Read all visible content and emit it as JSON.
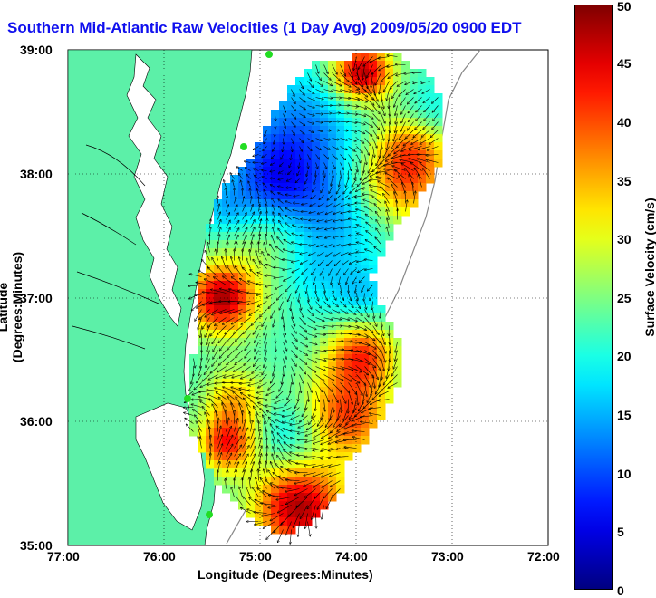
{
  "title": "Southern Mid-Atlantic Raw Velocities (1 Day Avg) 2009/05/20 0900 EDT",
  "xlabel": "Longitude (Degrees:Minutes)",
  "ylabel": "Latitude (Degrees:Minutes)",
  "x_ticks": [
    "77:00",
    "76:00",
    "75:00",
    "74:00",
    "73:00",
    "72:00"
  ],
  "y_ticks": [
    "39:00",
    "38:00",
    "37:00",
    "36:00",
    "35:00"
  ],
  "colorbar": {
    "label": "Surface Velocity (cm/s)",
    "ticks": [
      "50",
      "45",
      "40",
      "35",
      "30",
      "25",
      "20",
      "15",
      "10",
      "5",
      "0"
    ],
    "range": [
      0,
      50
    ],
    "colormap": "jet"
  },
  "map": {
    "extent": {
      "lon": [
        -77,
        -72
      ],
      "lat": [
        35,
        39
      ]
    },
    "land_color": "#5cf0a8",
    "station_color": "#22dd22",
    "grid": true
  }
}
